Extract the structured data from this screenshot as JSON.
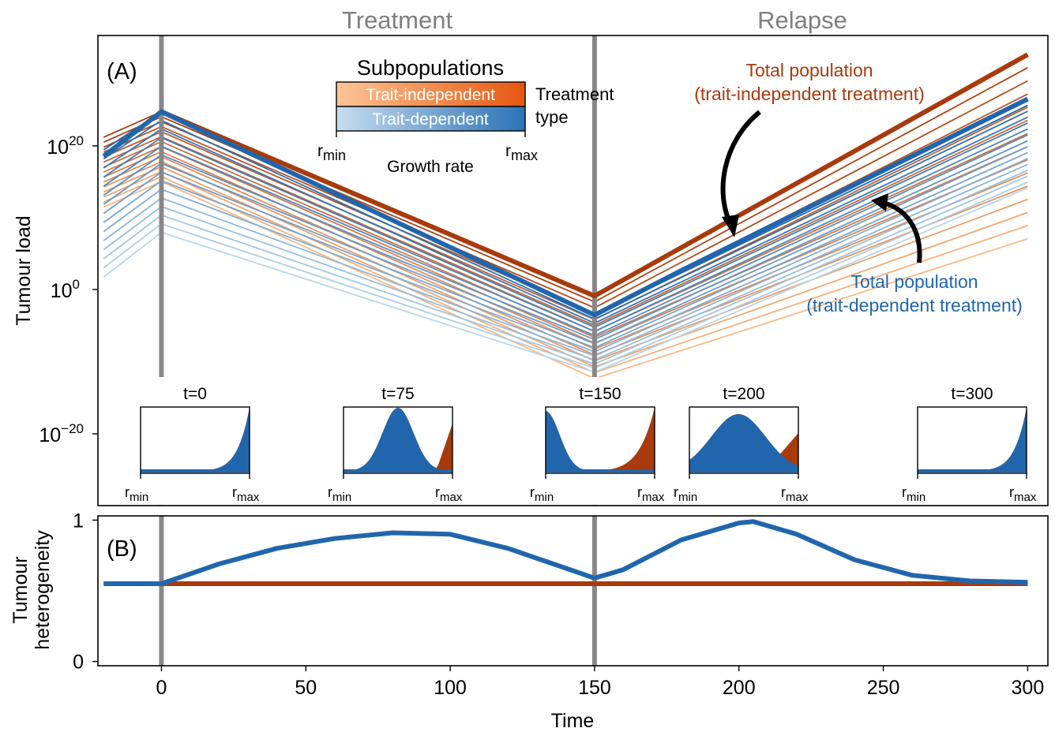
{
  "header": {
    "left_label": "Treatment",
    "right_label": "Relapse"
  },
  "colors": {
    "orange_dark": "#a83a0c",
    "orange_light": "#fdb882",
    "blue_dark": "#2166ac",
    "blue_light": "#b8d6ea",
    "phase_line": "#888888",
    "header_text": "#7f7f7f"
  },
  "chart_data": [
    {
      "panel": "(A)",
      "type": "line",
      "ylabel": "Tumour load",
      "yscale": "log",
      "y_ticks": [
        {
          "base": "10",
          "exp": "20"
        },
        {
          "base": "10",
          "exp": "0"
        },
        {
          "base": "10",
          "exp": "−20"
        }
      ],
      "xlim": [
        -22,
        307
      ],
      "ylim_log10": [
        -33,
        41
      ],
      "phase_lines_x": [
        0,
        150
      ],
      "annotations": {
        "orange": [
          "Total population",
          "(trait-independent treatment)"
        ],
        "blue": [
          "Total population",
          "(trait-dependent treatment)"
        ]
      },
      "legend": {
        "title": "Subpopulations",
        "entries": [
          "Trait-independent",
          "Trait-dependent"
        ],
        "side_label": [
          "Treatment",
          "type"
        ],
        "rmin": {
          "main": "r",
          "sub": "min"
        },
        "rmax": {
          "main": "r",
          "sub": "max"
        },
        "caption": "Growth rate"
      },
      "subpopulation_series": {
        "count": 15,
        "x": [
          -20,
          0,
          150,
          300
        ],
        "trait_independent_log10": {
          "top": [
            25,
            29,
            0,
            38
          ],
          "bottom": [
            14,
            18,
            -13,
            9
          ]
        },
        "trait_dependent_log10": {
          "top": [
            23,
            29,
            -3,
            30
          ],
          "bottom": [
            3,
            10,
            -12,
            17
          ]
        }
      },
      "total_series": [
        {
          "name": "Total population (trait-independent treatment)",
          "x": [
            0,
            150,
            300
          ],
          "log10_y": [
            29,
            0,
            38
          ]
        },
        {
          "name": "Total population (trait-dependent treatment)",
          "x": [
            -20,
            0,
            150,
            180,
            300
          ],
          "log10_y": [
            22,
            29,
            -3,
            4,
            31
          ]
        }
      ],
      "insets": [
        {
          "label": "t=0",
          "x": 0,
          "blue_peak": 1.0,
          "orange_peak": 0
        },
        {
          "label": "t=75",
          "x": 75,
          "blue_peak": 0.5,
          "orange_peak": 1.0
        },
        {
          "label": "t=150",
          "x": 150,
          "blue_peak": 0.0,
          "orange_peak": 1.0
        },
        {
          "label": "t=200",
          "x": 200,
          "blue_peak": 0.53,
          "orange_peak": 0.9
        },
        {
          "label": "t=300",
          "x": 300,
          "blue_peak": 1.0,
          "orange_peak": 0
        }
      ]
    },
    {
      "panel": "(B)",
      "type": "line",
      "ylabel": "Tumour heterogeneity",
      "xlabel": "Time",
      "xlim": [
        -22,
        307
      ],
      "ylim": [
        -0.03,
        1.03
      ],
      "x_ticks": [
        0,
        50,
        100,
        150,
        200,
        250,
        300
      ],
      "y_ticks": [
        0,
        1
      ],
      "series": [
        {
          "name": "trait-independent",
          "x": [
            -20,
            300
          ],
          "y": [
            0.55,
            0.55
          ]
        },
        {
          "name": "trait-dependent",
          "x": [
            -20,
            0,
            20,
            40,
            60,
            80,
            100,
            120,
            140,
            150,
            160,
            180,
            200,
            205,
            220,
            240,
            260,
            280,
            300
          ],
          "y": [
            0.55,
            0.55,
            0.69,
            0.8,
            0.87,
            0.91,
            0.9,
            0.8,
            0.66,
            0.59,
            0.65,
            0.86,
            0.98,
            0.99,
            0.9,
            0.72,
            0.61,
            0.57,
            0.56
          ]
        }
      ]
    }
  ]
}
